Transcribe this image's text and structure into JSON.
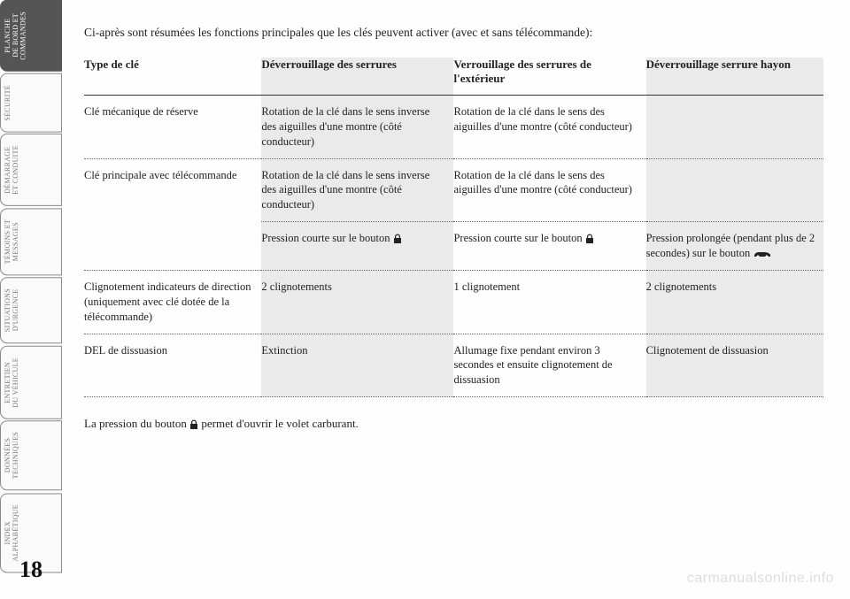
{
  "sidebar": {
    "tabs": [
      {
        "label": "PLANCHE\nDE BORD ET\nCOMMANDES",
        "active": true
      },
      {
        "label": "SÉCURITÉ",
        "active": false
      },
      {
        "label": "DÉMARRAGE\nET CONDUITE",
        "active": false
      },
      {
        "label": "TÉMOINS ET\nMESSAGES",
        "active": false
      },
      {
        "label": "SITUATIONS\nD'URGENCE",
        "active": false
      },
      {
        "label": "ENTRETIEN\nDU VÉHICULE",
        "active": false
      },
      {
        "label": "DONNÉES\nTECHNIQUES",
        "active": false
      },
      {
        "label": "INDEX\nALPHABÉTIQUE",
        "active": false
      }
    ]
  },
  "intro": "Ci-après sont résumées les fonctions principales que les clés peuvent activer (avec et sans télécommande):",
  "table": {
    "headers": {
      "c1": "Type de clé",
      "c2": "Déverrouillage des serrures",
      "c3": "Verrouillage des serrures de l'extérieur",
      "c4": "Déverrouillage serrure hayon"
    },
    "rows": {
      "r1": {
        "c1": "Clé mécanique de réserve",
        "c2": "Rotation de la clé dans le sens inverse des aiguilles d'une montre (côté conducteur)",
        "c3": "Rotation de la clé dans le sens des aiguilles d'une montre (côté conducteur)",
        "c4": ""
      },
      "r2a": {
        "c1": "Clé principale avec télécommande",
        "c2": "Rotation de la clé dans le sens inverse des aiguilles d'une montre (côté conducteur)",
        "c3": "Rotation de la clé dans le sens des aiguilles d'une montre (côté conducteur)",
        "c4": ""
      },
      "r2b": {
        "c2_pre": "Pression courte sur le bouton ",
        "c3_pre": "Pression courte sur le bouton ",
        "c4_pre": "Pression prolongée (pendant plus de 2 secondes) sur le bouton "
      },
      "r3": {
        "c1": "Clignotement indicateurs de direction (uniquement avec clé dotée de la télécommande)",
        "c2": "2 clignotements",
        "c3": "1 clignotement",
        "c4": "2 clignotements"
      },
      "r4": {
        "c1": "DEL de dissuasion",
        "c2": "Extinction",
        "c3": "Allumage fixe pendant environ 3 secondes et ensuite clignotement de dissuasion",
        "c4": "Clignotement de dissuasion"
      }
    }
  },
  "footer": {
    "pre": "La pression du bouton ",
    "post": " permet d'ouvrir le volet carburant."
  },
  "page_number": "18",
  "watermark": "carmanualsonline.info",
  "colors": {
    "shaded_bg": "#eaeaea",
    "text": "#222222",
    "tab_inactive_text": "#777777",
    "tab_active_bg": "#555555"
  }
}
